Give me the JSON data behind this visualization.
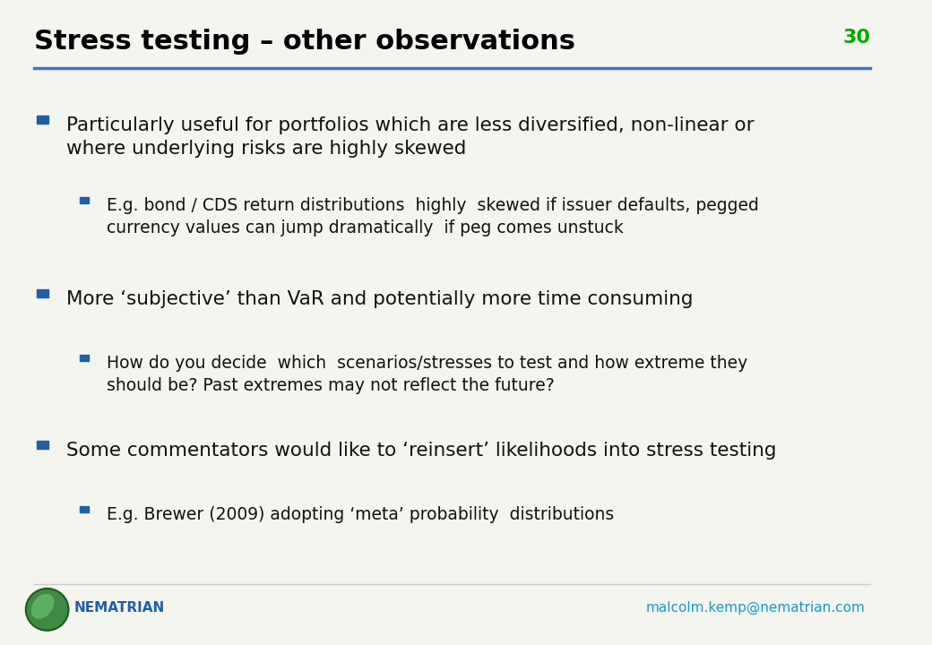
{
  "title": "Stress testing – other observations",
  "slide_number": "30",
  "title_color": "#000000",
  "title_fontsize": 22,
  "slide_number_color": "#00aa00",
  "line_color": "#4472c4",
  "background_color": "#f5f5f0",
  "bullet_color": "#1f5fa6",
  "sub_bullet_color": "#1f5fa6",
  "footer_logo_text": "NEMATRIAN",
  "footer_email": "malcolm.kemp@nematrian.com",
  "footer_color": "#1f5fa6",
  "bullets": [
    {
      "level": 1,
      "text": "Particularly useful for portfolios which are less diversified, non-linear or\nwhere underlying risks are highly skewed"
    },
    {
      "level": 2,
      "text": "E.g. bond / CDS return distributions  highly  skewed if issuer defaults, pegged\ncurrency values can jump dramatically  if peg comes unstuck"
    },
    {
      "level": 1,
      "text": "More ‘subjective’ than VaR and potentially more time consuming"
    },
    {
      "level": 2,
      "text": "How do you decide  which  scenarios/stresses to test and how extreme they\nshould be? Past extremes may not reflect the future?"
    },
    {
      "level": 1,
      "text": "Some commentators would like to ‘reinsert’ likelihoods into stress testing"
    },
    {
      "level": 2,
      "text": "E.g. Brewer (2009) adopting ‘meta’ probability  distributions"
    }
  ]
}
